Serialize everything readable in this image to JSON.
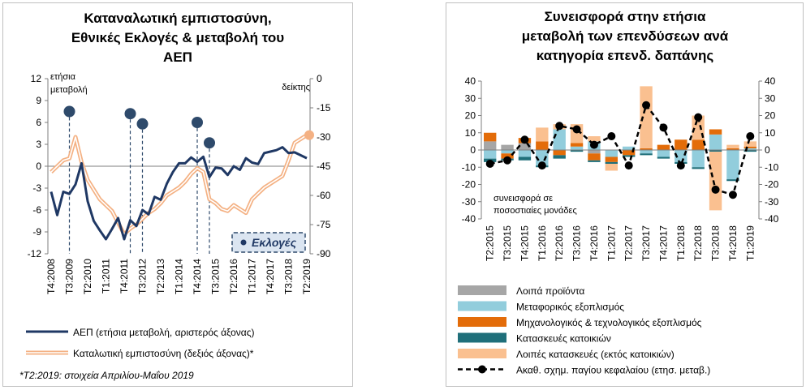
{
  "left": {
    "title_lines": [
      "Καταναλωτική εμπιστοσύνη,",
      "Εθνικές Εκλογές & μεταβολή του",
      "ΑΕΠ"
    ],
    "left_axis_note_lines": [
      "ετήσια",
      "μεταβολή"
    ],
    "right_axis_note": "δείκτης",
    "elections_label": "Εκλογές",
    "footnote": "*Τ2:2019: στοιχεία Απριλίου-Μαΐου 2019",
    "legend": [
      "ΑΕΠ (ετήσια μεταβολή, αριστερός άξονας)",
      "Καταλωτική εμπιστοσύνη (δεξιός άξονας)*"
    ],
    "colors": {
      "gdp": "#1f3864",
      "confidence": "#f4b183",
      "confidence_inner": "#ffffff",
      "elections": "#2e4a6b",
      "highlight": "#f4b183"
    }
  },
  "right": {
    "title_lines": [
      "Συνεισφορά στην ετήσια",
      "μεταβολή των επενδύσεων ανά",
      "κατηγορία επενδ. δαπάνης"
    ],
    "units_note_lines": [
      "συνεισφορά σε",
      "ποσοστιαίες μονάδες"
    ],
    "legend": [
      {
        "label": "Λοιπά προϊόντα",
        "color": "#a6a6a6"
      },
      {
        "label": "Μεταφορικός εξοπλισμός",
        "color": "#92cddc"
      },
      {
        "label": "Μηχανολογικός & τεχνολογικός εξοπλισμός",
        "color": "#e36c09"
      },
      {
        "label": "Κατασκευές κατοικιών",
        "color": "#1f6f7a"
      },
      {
        "label": "Λοιπές κατασκευές (εκτός κατοικιών)",
        "color": "#fac090"
      },
      {
        "label": "Ακαθ. σχημ. παγίου κεφαλαίου (ετησ. μεταβ.)",
        "color": "#000000"
      }
    ]
  },
  "chart_data": [
    {
      "type": "line",
      "title": "Καταναλωτική εμπιστοσύνη, Εθνικές Εκλογές & μεταβολή του ΑΕΠ",
      "ylabel": "ετήσια μεταβολή",
      "y2label": "δείκτης",
      "ylim": [
        -12,
        12
      ],
      "yticks": [
        12,
        9,
        6,
        3,
        0,
        -3,
        -6,
        -9,
        -12
      ],
      "y2lim": [
        -90,
        0
      ],
      "y2ticks": [
        0,
        -15,
        -30,
        -45,
        -60,
        -75,
        -90
      ],
      "x_tick_labels": [
        "Τ4:2008",
        "Τ3:2009",
        "Τ2:2010",
        "Τ1:2011",
        "Τ4:2011",
        "Τ3:2012",
        "Τ2:2013",
        "Τ1:2014",
        "Τ4:2014",
        "Τ3:2015",
        "Τ2:2016",
        "Τ1:2017",
        "Τ4:2017",
        "Τ3:2018",
        "Τ2:2019"
      ],
      "series": [
        {
          "name": "ΑΕΠ (ετήσια μεταβολή, αριστερός άξονας)",
          "axis": "left",
          "values": [
            -3.5,
            -6.7,
            -3.5,
            -3.8,
            -2.5,
            0.4,
            -4.8,
            -7.5,
            -8.8,
            -10.0,
            -8.6,
            -7.1,
            -10.0,
            -7.4,
            -8.2,
            -6.0,
            -6.6,
            -4.2,
            -4.6,
            -2.4,
            -0.8,
            0.4,
            0.4,
            1.2,
            0.6,
            1.3,
            -1.5,
            -0.2,
            -0.3,
            -1.2,
            0.0,
            -0.5,
            1.1,
            0.5,
            0.3,
            1.8,
            2.0,
            2.2,
            2.6,
            1.8,
            1.9,
            1.5,
            1.1
          ]
        },
        {
          "name": "Καταλωτική εμπιστοσύνη (δεξιός άξονας)*",
          "axis": "right",
          "values": [
            -48,
            -45,
            -42,
            -41,
            -30,
            -43,
            -52,
            -57,
            -62,
            -65,
            -68,
            -74,
            -80,
            -77,
            -75,
            -72,
            -69,
            -67,
            -64,
            -60,
            -58,
            -56,
            -53,
            -49,
            -46,
            -48,
            -62,
            -64,
            -67,
            -68,
            -65,
            -67,
            -69,
            -62,
            -59,
            -56,
            -54,
            -52,
            -50,
            -42,
            -33,
            -31,
            -29
          ]
        }
      ],
      "elections": [
        {
          "x_index": 3,
          "value": 7.5
        },
        {
          "x_index": 13,
          "value": 7.2
        },
        {
          "x_index": 15,
          "value": 5.8
        },
        {
          "x_index": 24,
          "value": 6.0
        },
        {
          "x_index": 26,
          "value": 3.2
        }
      ]
    },
    {
      "type": "bar",
      "title": "Συνεισφορά στην ετήσια μεταβολή των επενδύσεων ανά κατηγορία επενδ. δαπάνης",
      "ylabel": "συνεισφορά σε ποσοστιαίες μονάδες",
      "ylim": [
        -40,
        40
      ],
      "yticks": [
        40,
        30,
        20,
        10,
        0,
        -10,
        -20,
        -30,
        -40
      ],
      "stacked": true,
      "categories": [
        "Τ2:2015",
        "Τ3:2015",
        "Τ4:2015",
        "Τ1:2016",
        "Τ2:2016",
        "Τ3:2016",
        "Τ4:2016",
        "Τ1:2017",
        "Τ2:2017",
        "Τ3:2017",
        "Τ4:2017",
        "Τ1:2018",
        "Τ2:2018",
        "Τ3:2018",
        "Τ4:2018",
        "Τ1:2019"
      ],
      "series": [
        {
          "name": "Λοιπά προϊόντα",
          "values": [
            5,
            3,
            4,
            0,
            0,
            0,
            -2,
            0,
            0,
            0,
            0,
            0,
            0,
            0,
            0,
            0
          ]
        },
        {
          "name": "Μεταφορικός εξοπλισμός",
          "values": [
            -5,
            -2,
            -4,
            -9,
            12,
            2,
            5,
            -4,
            2,
            -2,
            -4,
            -7,
            -10,
            9,
            -17,
            1
          ]
        },
        {
          "name": "Μηχανολογικός & τεχνολογικός εξοπλισμός",
          "values": [
            5,
            -3,
            3,
            5,
            -3,
            2,
            -4,
            -3,
            -3,
            1,
            3,
            6,
            6,
            3,
            1,
            1
          ]
        },
        {
          "name": "Κατασκευές κατοικιών",
          "values": [
            -2,
            -1,
            -2,
            -1,
            -2,
            -1,
            -1,
            -1,
            -1,
            -1,
            -1,
            -1,
            -1,
            -1,
            -1,
            -1
          ]
        },
        {
          "name": "Λοιπές κατασκευές (εκτός κατοικιών)",
          "values": [
            0,
            0,
            0,
            8,
            3,
            11,
            3,
            -4,
            0,
            36,
            0,
            0,
            14,
            -34,
            2,
            3
          ]
        }
      ],
      "line": {
        "name": "Ακαθ. σχημ. παγίου κεφαλαίου (ετησ. μεταβ.)",
        "values": [
          -8,
          -6,
          6,
          -9,
          14,
          12,
          3,
          8,
          -9,
          26,
          13,
          -9,
          19,
          -23,
          -26,
          8
        ]
      }
    }
  ]
}
